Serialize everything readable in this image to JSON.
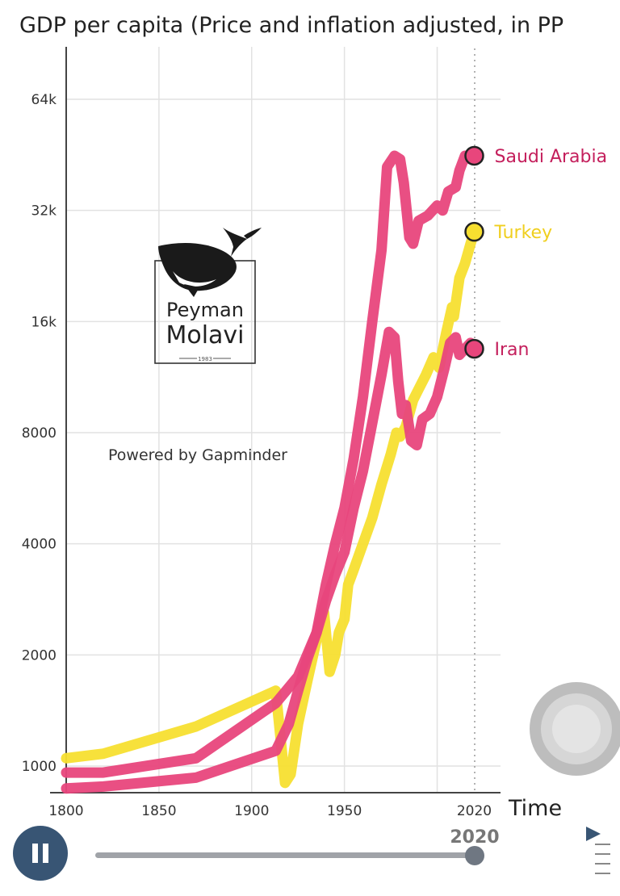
{
  "chart_data": {
    "type": "line",
    "title": "GDP per capita (Price and inflation adjusted, in PP",
    "xlabel": "Time",
    "ylabel": "",
    "xlim": [
      1800,
      2030
    ],
    "ylim": [
      900,
      90000
    ],
    "y_scale": "log",
    "x_ticks": [
      1800,
      1850,
      1900,
      1950,
      2020
    ],
    "y_ticks": [
      1000,
      2000,
      4000,
      8000,
      16000,
      32000,
      64000
    ],
    "y_tick_labels": [
      "1000",
      "2000",
      "4000",
      "8000",
      "16k",
      "32k",
      "64k"
    ],
    "grid": true,
    "current_year": 2020,
    "series": [
      {
        "name": "Saudi Arabia",
        "color": "#e8467c",
        "points": [
          [
            1800,
            960
          ],
          [
            1820,
            960
          ],
          [
            1870,
            1050
          ],
          [
            1913,
            1480
          ],
          [
            1925,
            1750
          ],
          [
            1935,
            2300
          ],
          [
            1940,
            3100
          ],
          [
            1945,
            4000
          ],
          [
            1950,
            5000
          ],
          [
            1955,
            6800
          ],
          [
            1960,
            10000
          ],
          [
            1965,
            16000
          ],
          [
            1970,
            25000
          ],
          [
            1973,
            42000
          ],
          [
            1977,
            45000
          ],
          [
            1980,
            44000
          ],
          [
            1982,
            38000
          ],
          [
            1985,
            27000
          ],
          [
            1987,
            26000
          ],
          [
            1990,
            30000
          ],
          [
            1995,
            31000
          ],
          [
            2000,
            33000
          ],
          [
            2003,
            32000
          ],
          [
            2006,
            36000
          ],
          [
            2010,
            37000
          ],
          [
            2012,
            41000
          ],
          [
            2015,
            45000
          ],
          [
            2018,
            44000
          ],
          [
            2020,
            45000
          ]
        ]
      },
      {
        "name": "Turkey",
        "color": "#f7df30",
        "points": [
          [
            1800,
            1050
          ],
          [
            1820,
            1080
          ],
          [
            1870,
            1280
          ],
          [
            1913,
            1600
          ],
          [
            1918,
            900
          ],
          [
            1921,
            950
          ],
          [
            1925,
            1300
          ],
          [
            1930,
            1700
          ],
          [
            1935,
            2200
          ],
          [
            1939,
            2600
          ],
          [
            1942,
            1800
          ],
          [
            1945,
            2000
          ],
          [
            1947,
            2300
          ],
          [
            1950,
            2500
          ],
          [
            1952,
            3100
          ],
          [
            1955,
            3400
          ],
          [
            1960,
            4000
          ],
          [
            1965,
            4700
          ],
          [
            1970,
            5800
          ],
          [
            1975,
            7000
          ],
          [
            1978,
            8000
          ],
          [
            1980,
            7800
          ],
          [
            1983,
            8300
          ],
          [
            1987,
            9800
          ],
          [
            1990,
            10500
          ],
          [
            1994,
            11500
          ],
          [
            1998,
            12800
          ],
          [
            2001,
            12000
          ],
          [
            2005,
            15000
          ],
          [
            2008,
            17500
          ],
          [
            2009,
            16500
          ],
          [
            2012,
            21000
          ],
          [
            2015,
            23000
          ],
          [
            2018,
            26000
          ],
          [
            2020,
            28000
          ]
        ]
      },
      {
        "name": "Iran",
        "color": "#e8467c",
        "points": [
          [
            1800,
            870
          ],
          [
            1820,
            880
          ],
          [
            1870,
            930
          ],
          [
            1913,
            1100
          ],
          [
            1920,
            1300
          ],
          [
            1925,
            1600
          ],
          [
            1930,
            1950
          ],
          [
            1935,
            2300
          ],
          [
            1940,
            2800
          ],
          [
            1945,
            3300
          ],
          [
            1950,
            3800
          ],
          [
            1955,
            5000
          ],
          [
            1960,
            6300
          ],
          [
            1965,
            8500
          ],
          [
            1970,
            11500
          ],
          [
            1974,
            15000
          ],
          [
            1977,
            14500
          ],
          [
            1979,
            11000
          ],
          [
            1981,
            9000
          ],
          [
            1983,
            9500
          ],
          [
            1986,
            7600
          ],
          [
            1989,
            7400
          ],
          [
            1992,
            8700
          ],
          [
            1996,
            9000
          ],
          [
            2000,
            10000
          ],
          [
            2004,
            12000
          ],
          [
            2007,
            14000
          ],
          [
            2010,
            14500
          ],
          [
            2012,
            13000
          ],
          [
            2015,
            13500
          ],
          [
            2018,
            14000
          ],
          [
            2020,
            13500
          ]
        ]
      }
    ]
  },
  "watermark": {
    "line1": "Peyman",
    "line2": "Molavi",
    "small": "1983",
    "icon": "whale-icon"
  },
  "credit": "Powered by Gapminder",
  "controls": {
    "pause_icon": "pause-icon",
    "current_year": "2020",
    "slider_fraction": 1.0,
    "menu_icon": "play-menu-icon"
  }
}
